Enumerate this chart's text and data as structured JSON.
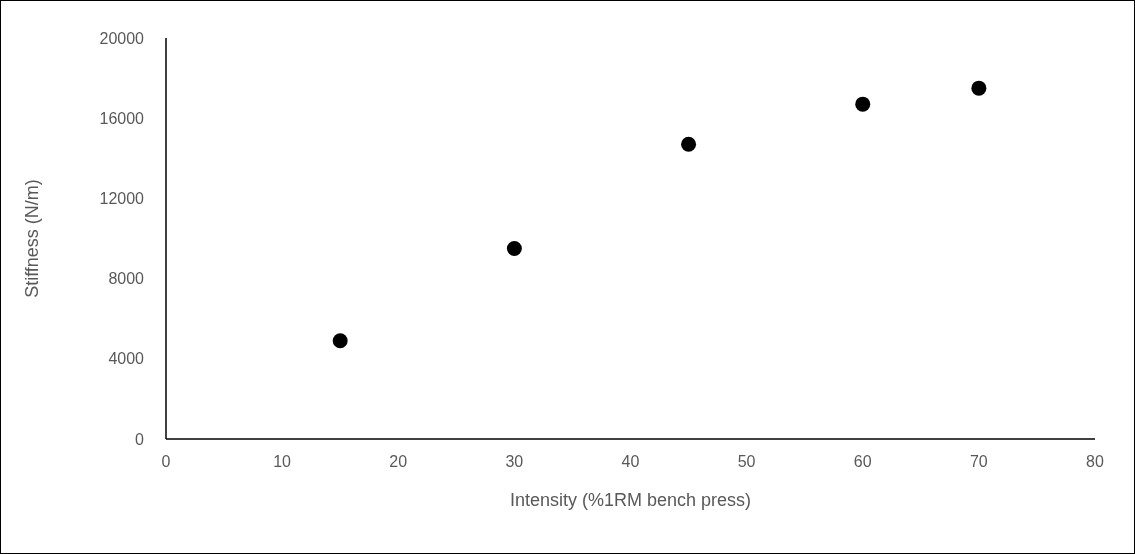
{
  "chart_data": {
    "type": "scatter",
    "xlabel": "Intensity (%1RM bench press)",
    "ylabel": "Stiffness (N/m)",
    "x": [
      15,
      30,
      45,
      60,
      70
    ],
    "series": [
      {
        "color": "#000000",
        "values": [
          4900,
          9500,
          14700,
          16700,
          17500
        ]
      }
    ],
    "xlim": [
      0,
      80
    ],
    "xticks": [
      0,
      10,
      20,
      30,
      40,
      50,
      60,
      70,
      80
    ],
    "ylim": [
      0,
      20000
    ],
    "yticks": [
      0,
      4000,
      8000,
      12000,
      16000,
      20000
    ],
    "grid": false,
    "marker": "circle"
  }
}
